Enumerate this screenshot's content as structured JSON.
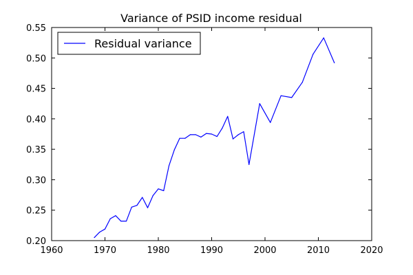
{
  "chart_data": {
    "type": "line",
    "title": "Variance of PSID income residual",
    "xlabel": "",
    "ylabel": "",
    "xlim": [
      1960,
      2020
    ],
    "ylim": [
      0.2,
      0.55
    ],
    "xticks": [
      "1960",
      "1970",
      "1980",
      "1990",
      "2000",
      "2010",
      "2020"
    ],
    "yticks": [
      "0.20",
      "0.25",
      "0.30",
      "0.35",
      "0.40",
      "0.45",
      "0.50",
      "0.55"
    ],
    "grid": false,
    "legend_position": "top-left",
    "series": [
      {
        "name": "Residual variance",
        "color": "#0000ff",
        "x": [
          1968,
          1969,
          1970,
          1971,
          1972,
          1973,
          1974,
          1975,
          1976,
          1977,
          1978,
          1979,
          1980,
          1981,
          1982,
          1983,
          1984,
          1985,
          1986,
          1987,
          1988,
          1989,
          1990,
          1991,
          1992,
          1993,
          1994,
          1995,
          1996,
          1997,
          1999,
          2001,
          2003,
          2005,
          2007,
          2009,
          2011,
          2013
        ],
        "y": [
          0.205,
          0.214,
          0.219,
          0.236,
          0.241,
          0.232,
          0.232,
          0.255,
          0.258,
          0.271,
          0.254,
          0.274,
          0.285,
          0.282,
          0.323,
          0.349,
          0.368,
          0.368,
          0.374,
          0.374,
          0.37,
          0.376,
          0.375,
          0.371,
          0.385,
          0.404,
          0.367,
          0.374,
          0.379,
          0.325,
          0.425,
          0.394,
          0.438,
          0.435,
          0.46,
          0.506,
          0.533,
          0.492
        ]
      }
    ]
  }
}
